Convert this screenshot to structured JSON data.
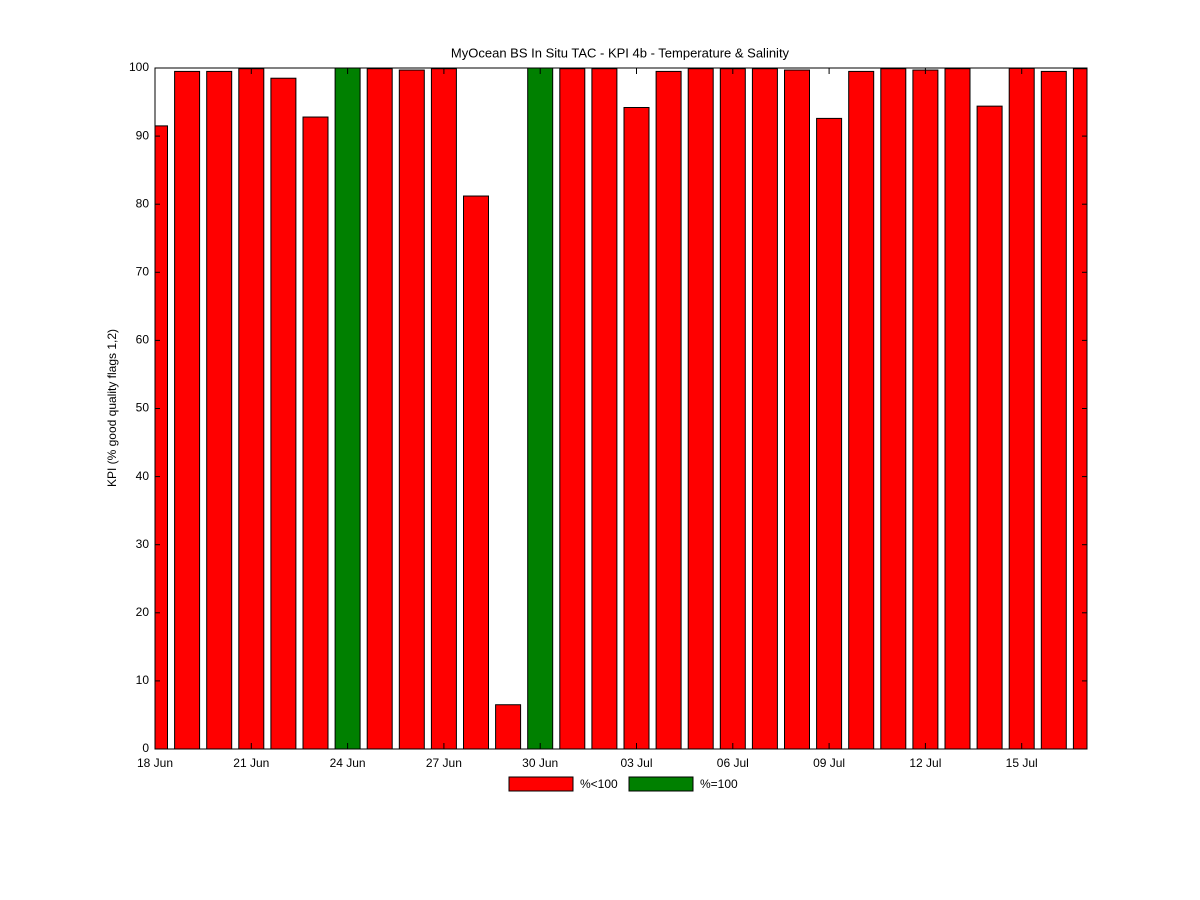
{
  "chart_data": {
    "type": "bar",
    "title": "MyOcean  BS In Situ TAC - KPI 4b - Temperature & Salinity",
    "y_label": "KPI (% good quality flags 1,2)",
    "categories": [
      "18 Jun",
      null,
      null,
      "21 Jun",
      null,
      null,
      "24 Jun",
      null,
      null,
      "27 Jun",
      null,
      null,
      "30 Jun",
      null,
      null,
      "03 Jul",
      null,
      null,
      "06 Jul",
      null,
      null,
      "09 Jul",
      null,
      null,
      "12 Jul",
      null,
      null,
      "15 Jul",
      null,
      null
    ],
    "series": [
      {
        "name": "%<100",
        "color": "#ff0000",
        "values": [
          91.5,
          99.5,
          99.5,
          99.9,
          98.5,
          92.8,
          null,
          99.9,
          99.7,
          99.9,
          81.2,
          6.5,
          null,
          99.9,
          99.9,
          94.2,
          99.5,
          99.9,
          99.9,
          99.9,
          99.7,
          92.6,
          99.5,
          99.9,
          99.7,
          99.9,
          94.4,
          99.95,
          99.5,
          99.9
        ]
      },
      {
        "name": "%=100",
        "color": "#008000",
        "values": [
          null,
          null,
          null,
          null,
          null,
          null,
          100,
          null,
          null,
          null,
          null,
          null,
          100,
          null,
          null,
          null,
          null,
          null,
          null,
          null,
          null,
          null,
          null,
          null,
          null,
          null,
          null,
          null,
          null,
          null
        ]
      }
    ],
    "ylim": [
      0,
      100
    ],
    "yticks": [
      0,
      10,
      20,
      30,
      40,
      50,
      60,
      70,
      80,
      90,
      100
    ],
    "legend": "bottom"
  }
}
